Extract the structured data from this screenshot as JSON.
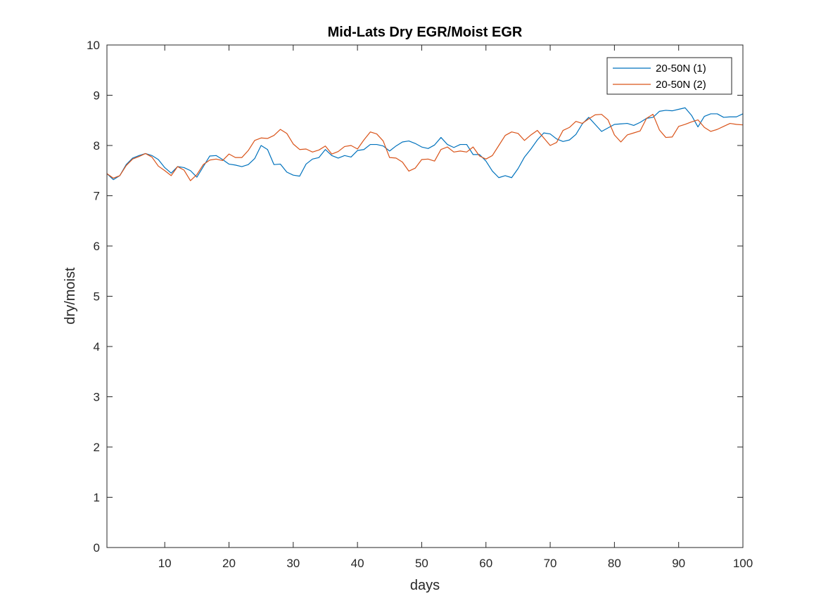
{
  "chart_data": {
    "type": "line",
    "title": "Mid-Lats Dry EGR/Moist EGR",
    "xlabel": "days",
    "ylabel": "dry/moist",
    "xlim": [
      1,
      100
    ],
    "ylim": [
      0,
      10
    ],
    "xticks": [
      10,
      20,
      30,
      40,
      50,
      60,
      70,
      80,
      90,
      100
    ],
    "yticks": [
      0,
      1,
      2,
      3,
      4,
      5,
      6,
      7,
      8,
      9,
      10
    ],
    "grid": false,
    "legend_position": "top-right",
    "x": [
      1,
      2,
      3,
      4,
      5,
      6,
      7,
      8,
      9,
      10,
      11,
      12,
      13,
      14,
      15,
      16,
      17,
      18,
      19,
      20,
      21,
      22,
      23,
      24,
      25,
      26,
      27,
      28,
      29,
      30,
      31,
      32,
      33,
      34,
      35,
      36,
      37,
      38,
      39,
      40,
      41,
      42,
      43,
      44,
      45,
      46,
      47,
      48,
      49,
      50,
      51,
      52,
      53,
      54,
      55,
      56,
      57,
      58,
      59,
      60,
      61,
      62,
      63,
      64,
      65,
      66,
      67,
      68,
      69,
      70,
      71,
      72,
      73,
      74,
      75,
      76,
      77,
      78,
      79,
      80,
      81,
      82,
      83,
      84,
      85,
      86,
      87,
      88,
      89,
      90,
      91,
      92,
      93,
      94,
      95,
      96,
      97,
      98,
      99,
      100
    ],
    "series": [
      {
        "name": "20-50N (1)",
        "color": "#0072BD",
        "values": [
          7.44,
          7.32,
          7.4,
          7.62,
          7.75,
          7.8,
          7.84,
          7.8,
          7.72,
          7.56,
          7.45,
          7.58,
          7.56,
          7.5,
          7.37,
          7.58,
          7.79,
          7.8,
          7.72,
          7.63,
          7.61,
          7.58,
          7.62,
          7.74,
          8.0,
          7.92,
          7.62,
          7.63,
          7.47,
          7.41,
          7.39,
          7.63,
          7.73,
          7.76,
          7.92,
          7.8,
          7.75,
          7.8,
          7.77,
          7.9,
          7.92,
          8.02,
          8.02,
          7.99,
          7.89,
          7.99,
          8.07,
          8.09,
          8.04,
          7.97,
          7.94,
          8.01,
          8.16,
          8.02,
          7.96,
          8.02,
          8.02,
          7.82,
          7.82,
          7.69,
          7.49,
          7.36,
          7.4,
          7.36,
          7.54,
          7.77,
          7.93,
          8.11,
          8.25,
          8.23,
          8.13,
          8.08,
          8.11,
          8.22,
          8.43,
          8.56,
          8.42,
          8.28,
          8.35,
          8.42,
          8.43,
          8.44,
          8.4,
          8.46,
          8.54,
          8.56,
          8.68,
          8.7,
          8.69,
          8.72,
          8.75,
          8.6,
          8.37,
          8.58,
          8.63,
          8.63,
          8.56,
          8.57,
          8.57,
          8.63
        ]
      },
      {
        "name": "20-50N (2)",
        "color": "#D95319",
        "values": [
          7.44,
          7.35,
          7.4,
          7.6,
          7.73,
          7.78,
          7.84,
          7.77,
          7.59,
          7.5,
          7.4,
          7.58,
          7.51,
          7.3,
          7.42,
          7.62,
          7.71,
          7.73,
          7.7,
          7.83,
          7.76,
          7.76,
          7.9,
          8.1,
          8.15,
          8.14,
          8.2,
          8.32,
          8.24,
          8.03,
          7.92,
          7.93,
          7.87,
          7.91,
          7.99,
          7.83,
          7.88,
          7.98,
          8.0,
          7.93,
          8.11,
          8.27,
          8.23,
          8.09,
          7.76,
          7.75,
          7.67,
          7.49,
          7.55,
          7.72,
          7.73,
          7.69,
          7.92,
          7.97,
          7.87,
          7.89,
          7.87,
          7.97,
          7.79,
          7.73,
          7.8,
          8.0,
          8.2,
          8.27,
          8.24,
          8.1,
          8.21,
          8.3,
          8.15,
          8.0,
          8.06,
          8.3,
          8.36,
          8.48,
          8.44,
          8.53,
          8.61,
          8.62,
          8.51,
          8.21,
          8.07,
          8.21,
          8.25,
          8.29,
          8.54,
          8.62,
          8.31,
          8.16,
          8.17,
          8.38,
          8.42,
          8.47,
          8.51,
          8.36,
          8.28,
          8.32,
          8.38,
          8.44,
          8.42,
          8.41
        ]
      }
    ]
  }
}
